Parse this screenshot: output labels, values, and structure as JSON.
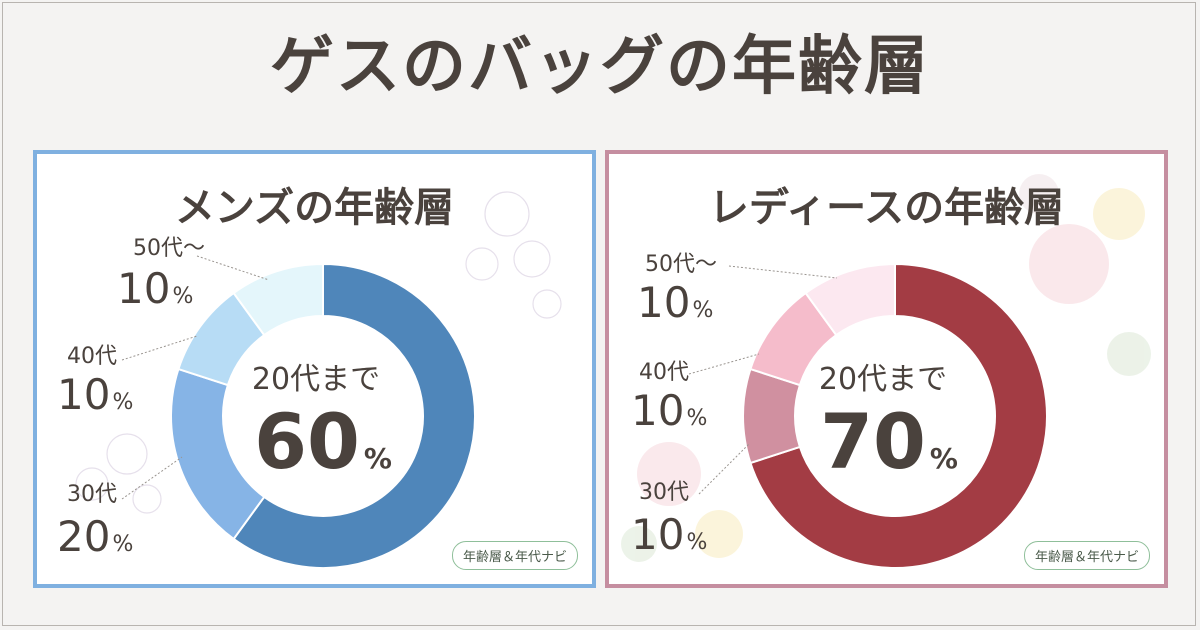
{
  "title": "ゲスのバッグの年齢層",
  "percent_unit": "%",
  "badge": "年齢層＆年代ナビ",
  "chart_data": [
    {
      "type": "pie",
      "title": "メンズの年齢層",
      "center": {
        "label": "20代まで",
        "value": "60"
      },
      "categories": [
        "20代まで",
        "30代",
        "40代",
        "50代～"
      ],
      "values": [
        60,
        20,
        10,
        10
      ],
      "colors": [
        "#4f86ba",
        "#86b4e6",
        "#b7dcf5",
        "#e4f6fb"
      ],
      "labels": [
        {
          "name": "50代～",
          "value": "10"
        },
        {
          "name": "40代",
          "value": "10"
        },
        {
          "name": "30代",
          "value": "20"
        }
      ]
    },
    {
      "type": "pie",
      "title": "レディースの年齢層",
      "center": {
        "label": "20代まで",
        "value": "70"
      },
      "categories": [
        "20代まで",
        "30代",
        "40代",
        "50代～"
      ],
      "values": [
        70,
        10,
        10,
        10
      ],
      "colors": [
        "#a33c44",
        "#d090a0",
        "#f5bccb",
        "#fce8f0"
      ],
      "labels": [
        {
          "name": "50代～",
          "value": "10"
        },
        {
          "name": "40代",
          "value": "10"
        },
        {
          "name": "30代",
          "value": "10"
        }
      ]
    }
  ]
}
